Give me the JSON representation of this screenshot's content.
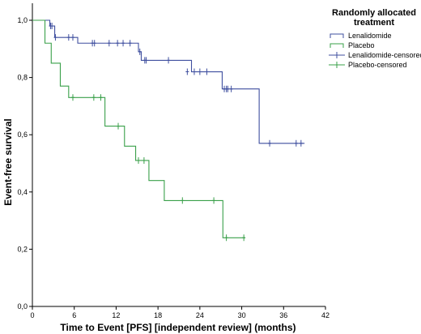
{
  "chart_data": {
    "type": "line",
    "title": "",
    "xlabel": "Time to Event [PFS] [independent review] (months)",
    "ylabel": "Event-free survival",
    "xlim": [
      0,
      42
    ],
    "ylim": [
      0,
      1.0
    ],
    "x_ticks": [
      0,
      6,
      12,
      18,
      24,
      30,
      36,
      42
    ],
    "x_tick_labels": [
      "0",
      "6",
      "12",
      "18",
      "24",
      "30",
      "36",
      "42"
    ],
    "y_ticks": [
      0,
      0.2,
      0.4,
      0.6,
      0.8,
      1.0
    ],
    "y_tick_labels": [
      "0,0",
      "0,2",
      "0,4",
      "0,6",
      "0,8",
      "1,0"
    ],
    "grid": false,
    "legend": {
      "title_lines": [
        "Randomly allocated",
        "treatment"
      ],
      "placement": "top-right",
      "entries": [
        {
          "label": "Lenalidomide",
          "symbol": "step",
          "color": "#3f4f9f"
        },
        {
          "label": "Placebo",
          "symbol": "step",
          "color": "#3aa04a"
        },
        {
          "label": "Lenalidomide-censored",
          "symbol": "plus",
          "color": "#3f4f9f"
        },
        {
          "label": "Placebo-censored",
          "symbol": "plus",
          "color": "#3aa04a"
        }
      ]
    },
    "series": [
      {
        "name": "Lenalidomide",
        "color": "#3f4f9f",
        "steps": [
          [
            0,
            1.0
          ],
          [
            2.5,
            0.98
          ],
          [
            3.2,
            0.94
          ],
          [
            6.5,
            0.92
          ],
          [
            15.2,
            0.89
          ],
          [
            15.6,
            0.86
          ],
          [
            22.8,
            0.82
          ],
          [
            27.2,
            0.76
          ],
          [
            32.5,
            0.57
          ],
          [
            39.0,
            0.57
          ]
        ],
        "censored": [
          [
            2.6,
            0.98
          ],
          [
            2.8,
            0.98
          ],
          [
            3.3,
            0.94
          ],
          [
            5.2,
            0.94
          ],
          [
            5.8,
            0.94
          ],
          [
            8.6,
            0.92
          ],
          [
            8.9,
            0.92
          ],
          [
            11.0,
            0.92
          ],
          [
            12.2,
            0.92
          ],
          [
            13.0,
            0.92
          ],
          [
            14.0,
            0.92
          ],
          [
            15.4,
            0.89
          ],
          [
            16.1,
            0.86
          ],
          [
            16.3,
            0.86
          ],
          [
            19.5,
            0.86
          ],
          [
            22.2,
            0.82
          ],
          [
            23.2,
            0.82
          ],
          [
            24.0,
            0.82
          ],
          [
            25.0,
            0.82
          ],
          [
            27.5,
            0.76
          ],
          [
            27.8,
            0.76
          ],
          [
            28.0,
            0.76
          ],
          [
            28.5,
            0.76
          ],
          [
            34.0,
            0.57
          ],
          [
            37.8,
            0.57
          ],
          [
            38.5,
            0.57
          ]
        ]
      },
      {
        "name": "Placebo",
        "color": "#3aa04a",
        "steps": [
          [
            0,
            1.0
          ],
          [
            1.8,
            0.92
          ],
          [
            2.7,
            0.85
          ],
          [
            4.0,
            0.77
          ],
          [
            5.2,
            0.73
          ],
          [
            10.4,
            0.63
          ],
          [
            13.2,
            0.56
          ],
          [
            14.8,
            0.51
          ],
          [
            16.7,
            0.44
          ],
          [
            18.9,
            0.37
          ],
          [
            27.3,
            0.24
          ],
          [
            30.5,
            0.24
          ]
        ],
        "censored": [
          [
            5.8,
            0.73
          ],
          [
            8.8,
            0.73
          ],
          [
            9.8,
            0.73
          ],
          [
            12.3,
            0.63
          ],
          [
            15.2,
            0.51
          ],
          [
            16.0,
            0.51
          ],
          [
            21.5,
            0.37
          ],
          [
            26.0,
            0.37
          ],
          [
            27.8,
            0.24
          ],
          [
            30.3,
            0.24
          ]
        ]
      }
    ]
  }
}
